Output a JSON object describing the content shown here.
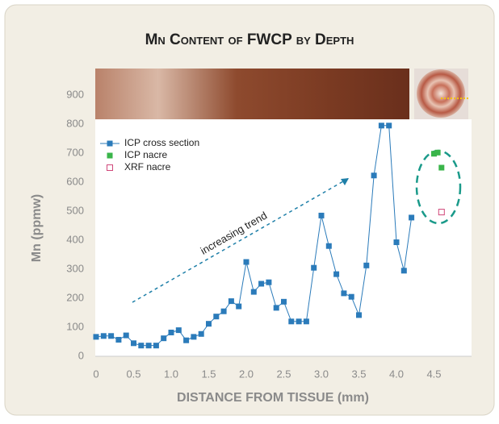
{
  "chart_data": {
    "type": "line",
    "title": "Mn Content of FWCP by Depth",
    "x_label": "DISTANCE FROM TISSUE (mm)",
    "y_label": "Mn (ppmw)",
    "annotation": "increasing trend",
    "xlim": [
      0,
      5
    ],
    "ylim": [
      0,
      900
    ],
    "xticks": [
      0,
      0.5,
      {
        "value": 1,
        "label": "1.0"
      },
      1.5,
      {
        "value": 2,
        "label": "2.0"
      },
      2.5,
      {
        "value": 3,
        "label": "3.0"
      },
      3.5,
      {
        "value": 4,
        "label": "4.0"
      },
      4.5
    ],
    "yticks": [
      0,
      100,
      200,
      300,
      400,
      500,
      600,
      700,
      800,
      900
    ],
    "legend": "upper left",
    "series": [
      {
        "name": "ICP cross section",
        "color": "#2b7bba",
        "marker": "square",
        "filled": true,
        "line": true,
        "x": [
          0,
          0.1,
          0.2,
          0.3,
          0.4,
          0.5,
          0.6,
          0.7,
          0.8,
          0.9,
          1.0,
          1.1,
          1.2,
          1.3,
          1.4,
          1.5,
          1.6,
          1.7,
          1.8,
          1.9,
          2.0,
          2.1,
          2.2,
          2.3,
          2.4,
          2.5,
          2.6,
          2.7,
          2.8,
          2.9,
          3.0,
          3.1,
          3.2,
          3.3,
          3.4,
          3.5,
          3.6,
          3.7,
          3.8,
          3.9,
          4.0,
          4.1,
          4.2
        ],
        "values": [
          67,
          70,
          70,
          57,
          72,
          45,
          37,
          37,
          37,
          62,
          82,
          90,
          55,
          67,
          77,
          112,
          137,
          155,
          190,
          172,
          325,
          222,
          250,
          255,
          167,
          188,
          120,
          120,
          120,
          305,
          485,
          380,
          283,
          217,
          205,
          142,
          313,
          623,
          795,
          795,
          393,
          295,
          478
        ]
      },
      {
        "name": "ICP nacre",
        "color": "#3ab54a",
        "marker": "square",
        "filled": true,
        "line": false,
        "x": [
          4.5,
          4.55,
          4.6
        ],
        "values": [
          698,
          702,
          650
        ]
      },
      {
        "name": "XRF nacre",
        "color": "#d0477a",
        "marker": "square",
        "filled": false,
        "line": false,
        "x": [
          4.6
        ],
        "values": [
          497
        ]
      }
    ]
  }
}
